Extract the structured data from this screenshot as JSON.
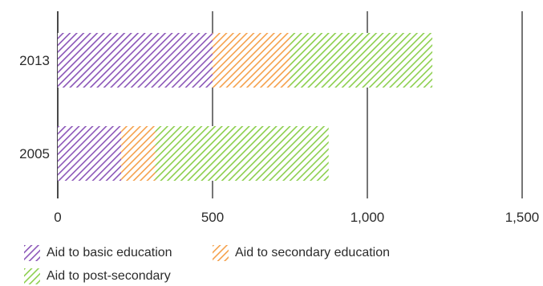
{
  "chart_data": {
    "type": "bar",
    "orientation": "horizontal",
    "stacked": true,
    "categories": [
      "2013",
      "2005"
    ],
    "series": [
      {
        "name": "Aid to basic education",
        "values": [
          500,
          205
        ],
        "color": "#8b55b8"
      },
      {
        "name": "Aid to secondary education",
        "values": [
          250,
          110
        ],
        "color": "#f5a04a"
      },
      {
        "name": "Aid to post-secondary",
        "values": [
          460,
          560
        ],
        "color": "#8ccf4d"
      }
    ],
    "xlim": [
      0,
      1500
    ],
    "xticks": [
      0,
      500,
      1000,
      1500
    ],
    "xtick_labels": [
      "0",
      "500",
      "1,000",
      "1,500"
    ],
    "grid": "vertical",
    "fill_pattern": "diagonal hatch",
    "legend_position": "bottom-left"
  }
}
